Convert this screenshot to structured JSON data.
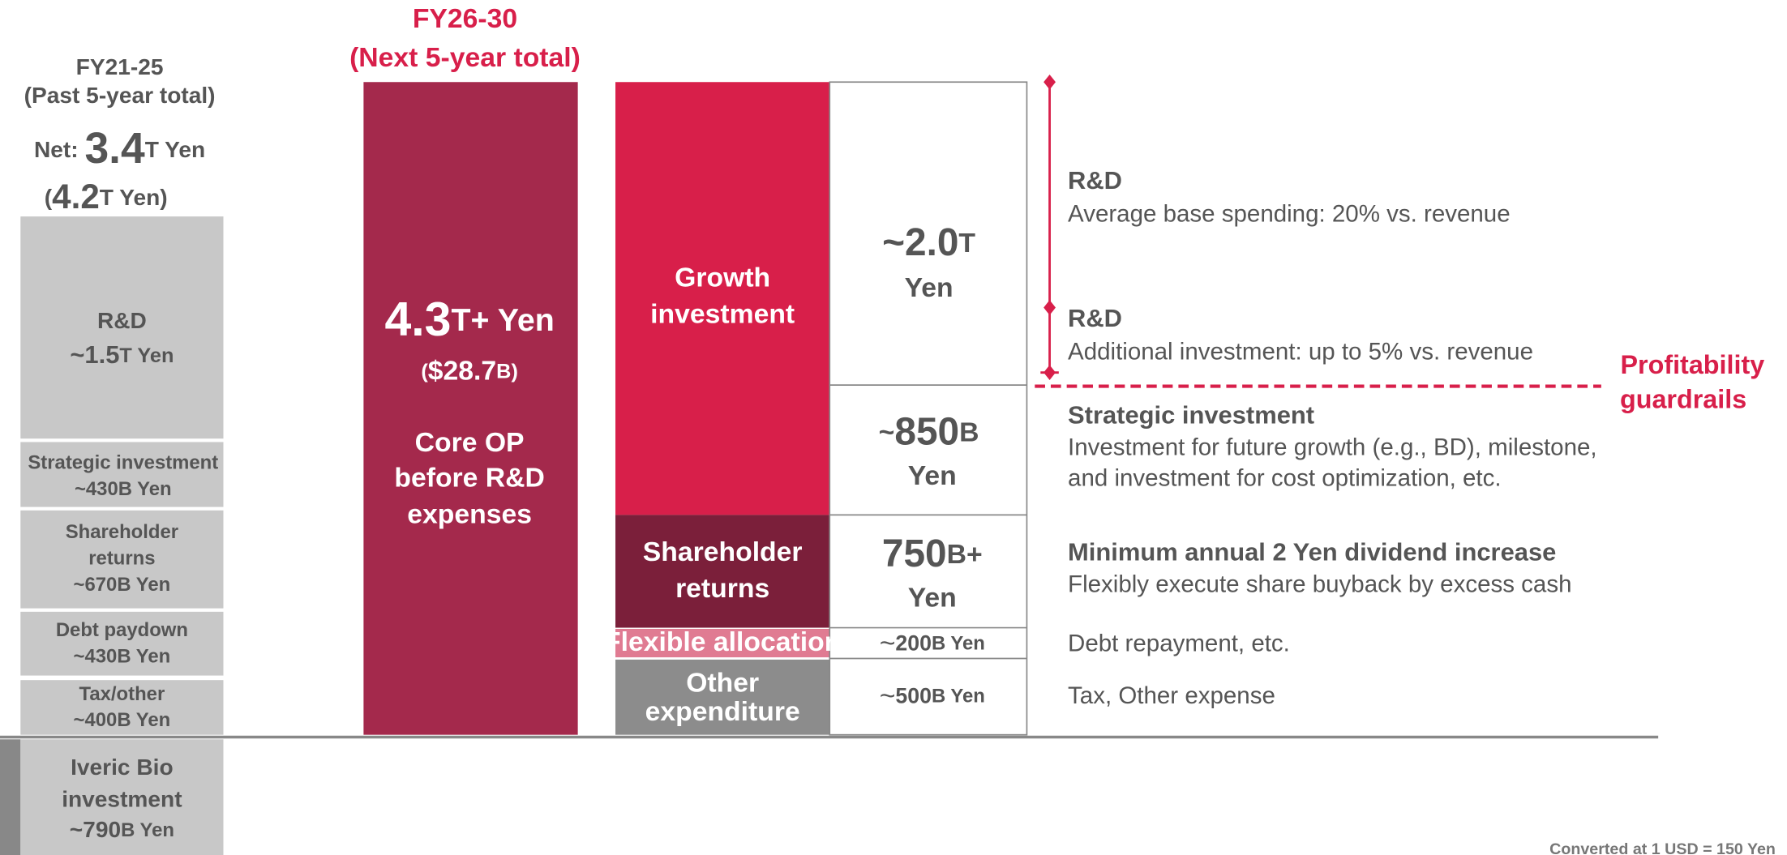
{
  "past": {
    "period": "FY21-25",
    "subtitle": "(Past 5-year total)",
    "net": [
      "Net: ",
      "3.4",
      "T Yen"
    ],
    "gross": [
      "(",
      "4.2",
      "T Yen)"
    ],
    "blocks": [
      {
        "lines": [
          "R&D"
        ],
        "amount": [
          "~1.5",
          "T Yen"
        ]
      },
      {
        "lines": [
          "Strategic investment"
        ],
        "amount": [
          "~430B Yen"
        ]
      },
      {
        "lines": [
          "Shareholder",
          "returns"
        ],
        "amount": [
          "~670B Yen"
        ]
      },
      {
        "lines": [
          "Debt paydown"
        ],
        "amount": [
          "~430B Yen"
        ]
      },
      {
        "lines": [
          "Tax/other"
        ],
        "amount": [
          "~400B Yen"
        ]
      }
    ],
    "iveric": {
      "lines": [
        "Iveric Bio",
        "investment"
      ],
      "amount": [
        "~790",
        "B Yen"
      ]
    }
  },
  "next": {
    "period": "FY26-30",
    "subtitle": "(Next 5-year total)",
    "total": [
      "4.3",
      "T+ Yen"
    ],
    "usd": [
      "(",
      "$28.7",
      "B",
      ")"
    ],
    "source": [
      "Core OP",
      "before R&D",
      "expenses"
    ]
  },
  "allocation": [
    {
      "category": [
        "Growth",
        "investment"
      ],
      "amount": [
        "~2.0",
        "T",
        "Yen"
      ]
    },
    {
      "amount": [
        "~",
        "850",
        "B",
        "Yen"
      ]
    },
    {
      "category": [
        "Shareholder",
        "returns"
      ],
      "amount": [
        "750",
        "B+",
        "Yen"
      ]
    },
    {
      "category": [
        "Flexible allocation"
      ],
      "amount": [
        "~",
        "200",
        "B Yen"
      ]
    },
    {
      "category": [
        "Other",
        "expenditure"
      ],
      "amount": [
        "~",
        "500",
        "B Yen"
      ]
    }
  ],
  "descriptions": [
    {
      "title": "R&D",
      "text": [
        "Average base spending: 20% vs. revenue"
      ]
    },
    {
      "title": "R&D",
      "text": [
        "Additional investment: up to 5% vs. revenue"
      ]
    },
    {
      "title": "Strategic investment",
      "text": [
        "Investment for future growth (e.g., BD), milestone,",
        "and investment for cost optimization, etc."
      ]
    },
    {
      "title": "Minimum annual 2 Yen dividend increase",
      "text": [
        "Flexibly execute share buyback by excess cash"
      ]
    },
    {
      "text": [
        "Debt repayment, etc."
      ]
    },
    {
      "text": [
        "Tax, Other expense"
      ]
    }
  ],
  "guardrail": [
    "Profitability",
    "guardrails"
  ],
  "footnote": "Converted at 1 USD  = 150 Yen"
}
